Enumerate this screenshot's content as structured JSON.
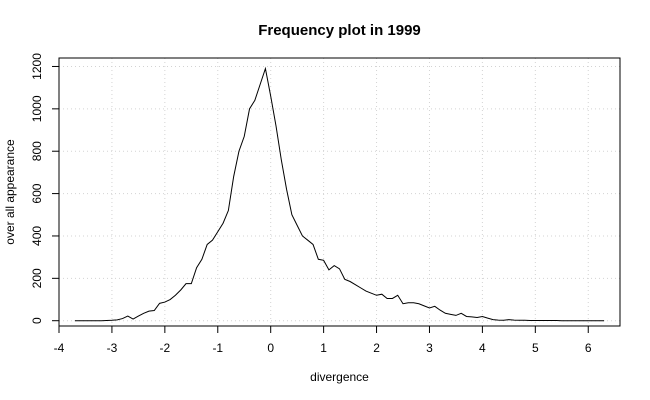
{
  "chart_data": {
    "type": "line",
    "title": "Frequency plot in 1999",
    "xlabel": "divergence",
    "ylabel": "over all appearance",
    "xlim": [
      -4,
      6.6
    ],
    "ylim": [
      -25,
      1240
    ],
    "xticks": [
      -4,
      -3,
      -2,
      -1,
      0,
      1,
      2,
      3,
      4,
      5,
      6
    ],
    "xtick_labels": [
      "-4",
      "-3",
      "-2",
      "-1",
      "0",
      "1",
      "2",
      "3",
      "4",
      "5",
      "6"
    ],
    "yticks": [
      0,
      200,
      400,
      600,
      800,
      1000,
      1200
    ],
    "ytick_labels": [
      "0",
      "200",
      "400",
      "600",
      "800",
      "1000",
      "1200"
    ],
    "grid": true,
    "colors": {
      "line": "#000000",
      "grid": "#d3d3d3",
      "frame": "#000000"
    },
    "series": [
      {
        "x": [
          -3.7,
          -3.6,
          -3.5,
          -3.4,
          -3.3,
          -3.2,
          -3.1,
          -3.0,
          -2.9,
          -2.8,
          -2.7,
          -2.6,
          -2.5,
          -2.4,
          -2.3,
          -2.2,
          -2.1,
          -2.0,
          -1.9,
          -1.8,
          -1.7,
          -1.6,
          -1.5,
          -1.4,
          -1.3,
          -1.2,
          -1.1,
          -1.0,
          -0.9,
          -0.8,
          -0.7,
          -0.6,
          -0.5,
          -0.4,
          -0.3,
          -0.2,
          -0.1,
          0.0,
          0.1,
          0.2,
          0.3,
          0.4,
          0.5,
          0.6,
          0.7,
          0.8,
          0.9,
          1.0,
          1.1,
          1.2,
          1.3,
          1.4,
          1.5,
          1.6,
          1.7,
          1.8,
          1.9,
          2.0,
          2.1,
          2.2,
          2.3,
          2.4,
          2.5,
          2.6,
          2.7,
          2.8,
          2.9,
          3.0,
          3.1,
          3.2,
          3.3,
          3.4,
          3.5,
          3.6,
          3.7,
          3.8,
          3.9,
          4.0,
          4.1,
          4.2,
          4.3,
          4.4,
          4.5,
          4.6,
          4.7,
          4.8,
          4.9,
          5.0,
          5.1,
          5.2,
          5.3,
          5.4,
          5.5,
          5.6,
          5.7,
          5.8,
          5.9,
          6.0,
          6.1,
          6.2,
          6.3
        ],
        "values": [
          0,
          0,
          0,
          0,
          0,
          0,
          1,
          2,
          4,
          10,
          22,
          8,
          22,
          35,
          45,
          48,
          82,
          88,
          100,
          120,
          145,
          175,
          175,
          250,
          290,
          360,
          380,
          420,
          460,
          520,
          680,
          800,
          870,
          1000,
          1040,
          1115,
          1190,
          1060,
          920,
          760,
          620,
          500,
          450,
          400,
          380,
          360,
          290,
          285,
          240,
          260,
          245,
          195,
          185,
          170,
          155,
          140,
          130,
          120,
          125,
          105,
          105,
          120,
          80,
          85,
          85,
          80,
          70,
          60,
          68,
          50,
          35,
          30,
          25,
          35,
          20,
          18,
          15,
          20,
          12,
          5,
          3,
          2,
          5,
          3,
          2,
          2,
          1,
          1,
          1,
          1,
          1,
          1,
          0,
          0,
          0,
          0,
          0,
          0,
          0,
          0,
          0
        ]
      }
    ]
  }
}
